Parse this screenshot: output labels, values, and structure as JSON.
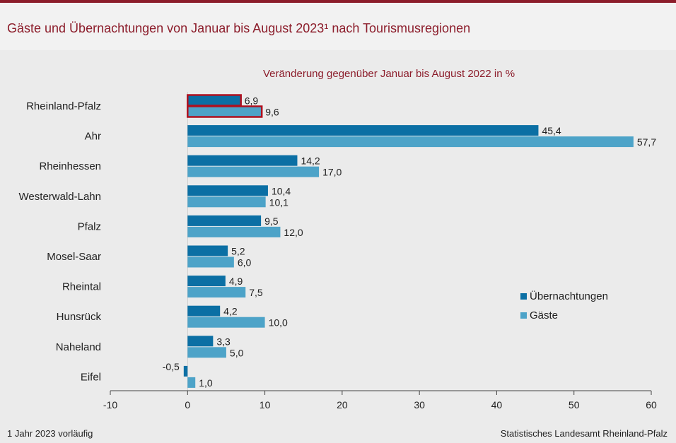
{
  "header": {
    "title": "Gäste und Übernachtungen von Januar bis August 2023¹ nach Tourismusregionen"
  },
  "footer": {
    "footnote": "1 Jahr 2023 vorläufig",
    "source": "Statistisches Landesamt  Rheinland-Pfalz"
  },
  "colors": {
    "uebernachtungen": "#0b6fa4",
    "gaeste": "#4da3c8",
    "highlight": "#b0101e",
    "title": "#8c1d2b"
  },
  "chart_data": {
    "type": "bar",
    "orientation": "horizontal",
    "subtitle": "Veränderung  gegenüber  Januar bis August 2022 in %",
    "categories": [
      "Rheinland-Pfalz",
      "Ahr",
      "Rheinhessen",
      "Westerwald-Lahn",
      "Pfalz",
      "Mosel-Saar",
      "Rheintal",
      "Hunsrück",
      "Naheland",
      "Eifel"
    ],
    "series": [
      {
        "name": "Übernachtungen",
        "values": [
          6.9,
          45.4,
          14.2,
          10.4,
          9.5,
          5.2,
          4.9,
          4.2,
          3.3,
          -0.5
        ],
        "labels": [
          "6,9",
          "45,4",
          "14,2",
          "10,4",
          "9,5",
          "5,2",
          "4,9",
          "4,2",
          "3,3",
          "-0,5"
        ]
      },
      {
        "name": "Gäste",
        "values": [
          9.6,
          57.7,
          17.0,
          10.1,
          12.0,
          6.0,
          7.5,
          10.0,
          5.0,
          1.0
        ],
        "labels": [
          "9,6",
          "57,7",
          "17,0",
          "10,1",
          "12,0",
          "6,0",
          "7,5",
          "10,0",
          "5,0",
          "1,0"
        ]
      }
    ],
    "highlight_category": "Rheinland-Pfalz",
    "xlim": [
      -10,
      60
    ],
    "xticks": [
      -10,
      0,
      10,
      20,
      30,
      40,
      50,
      60
    ],
    "xtick_labels": [
      "-10",
      "0",
      "10",
      "20",
      "30",
      "40",
      "50",
      "60"
    ],
    "legend_position": "right",
    "grid": false
  }
}
